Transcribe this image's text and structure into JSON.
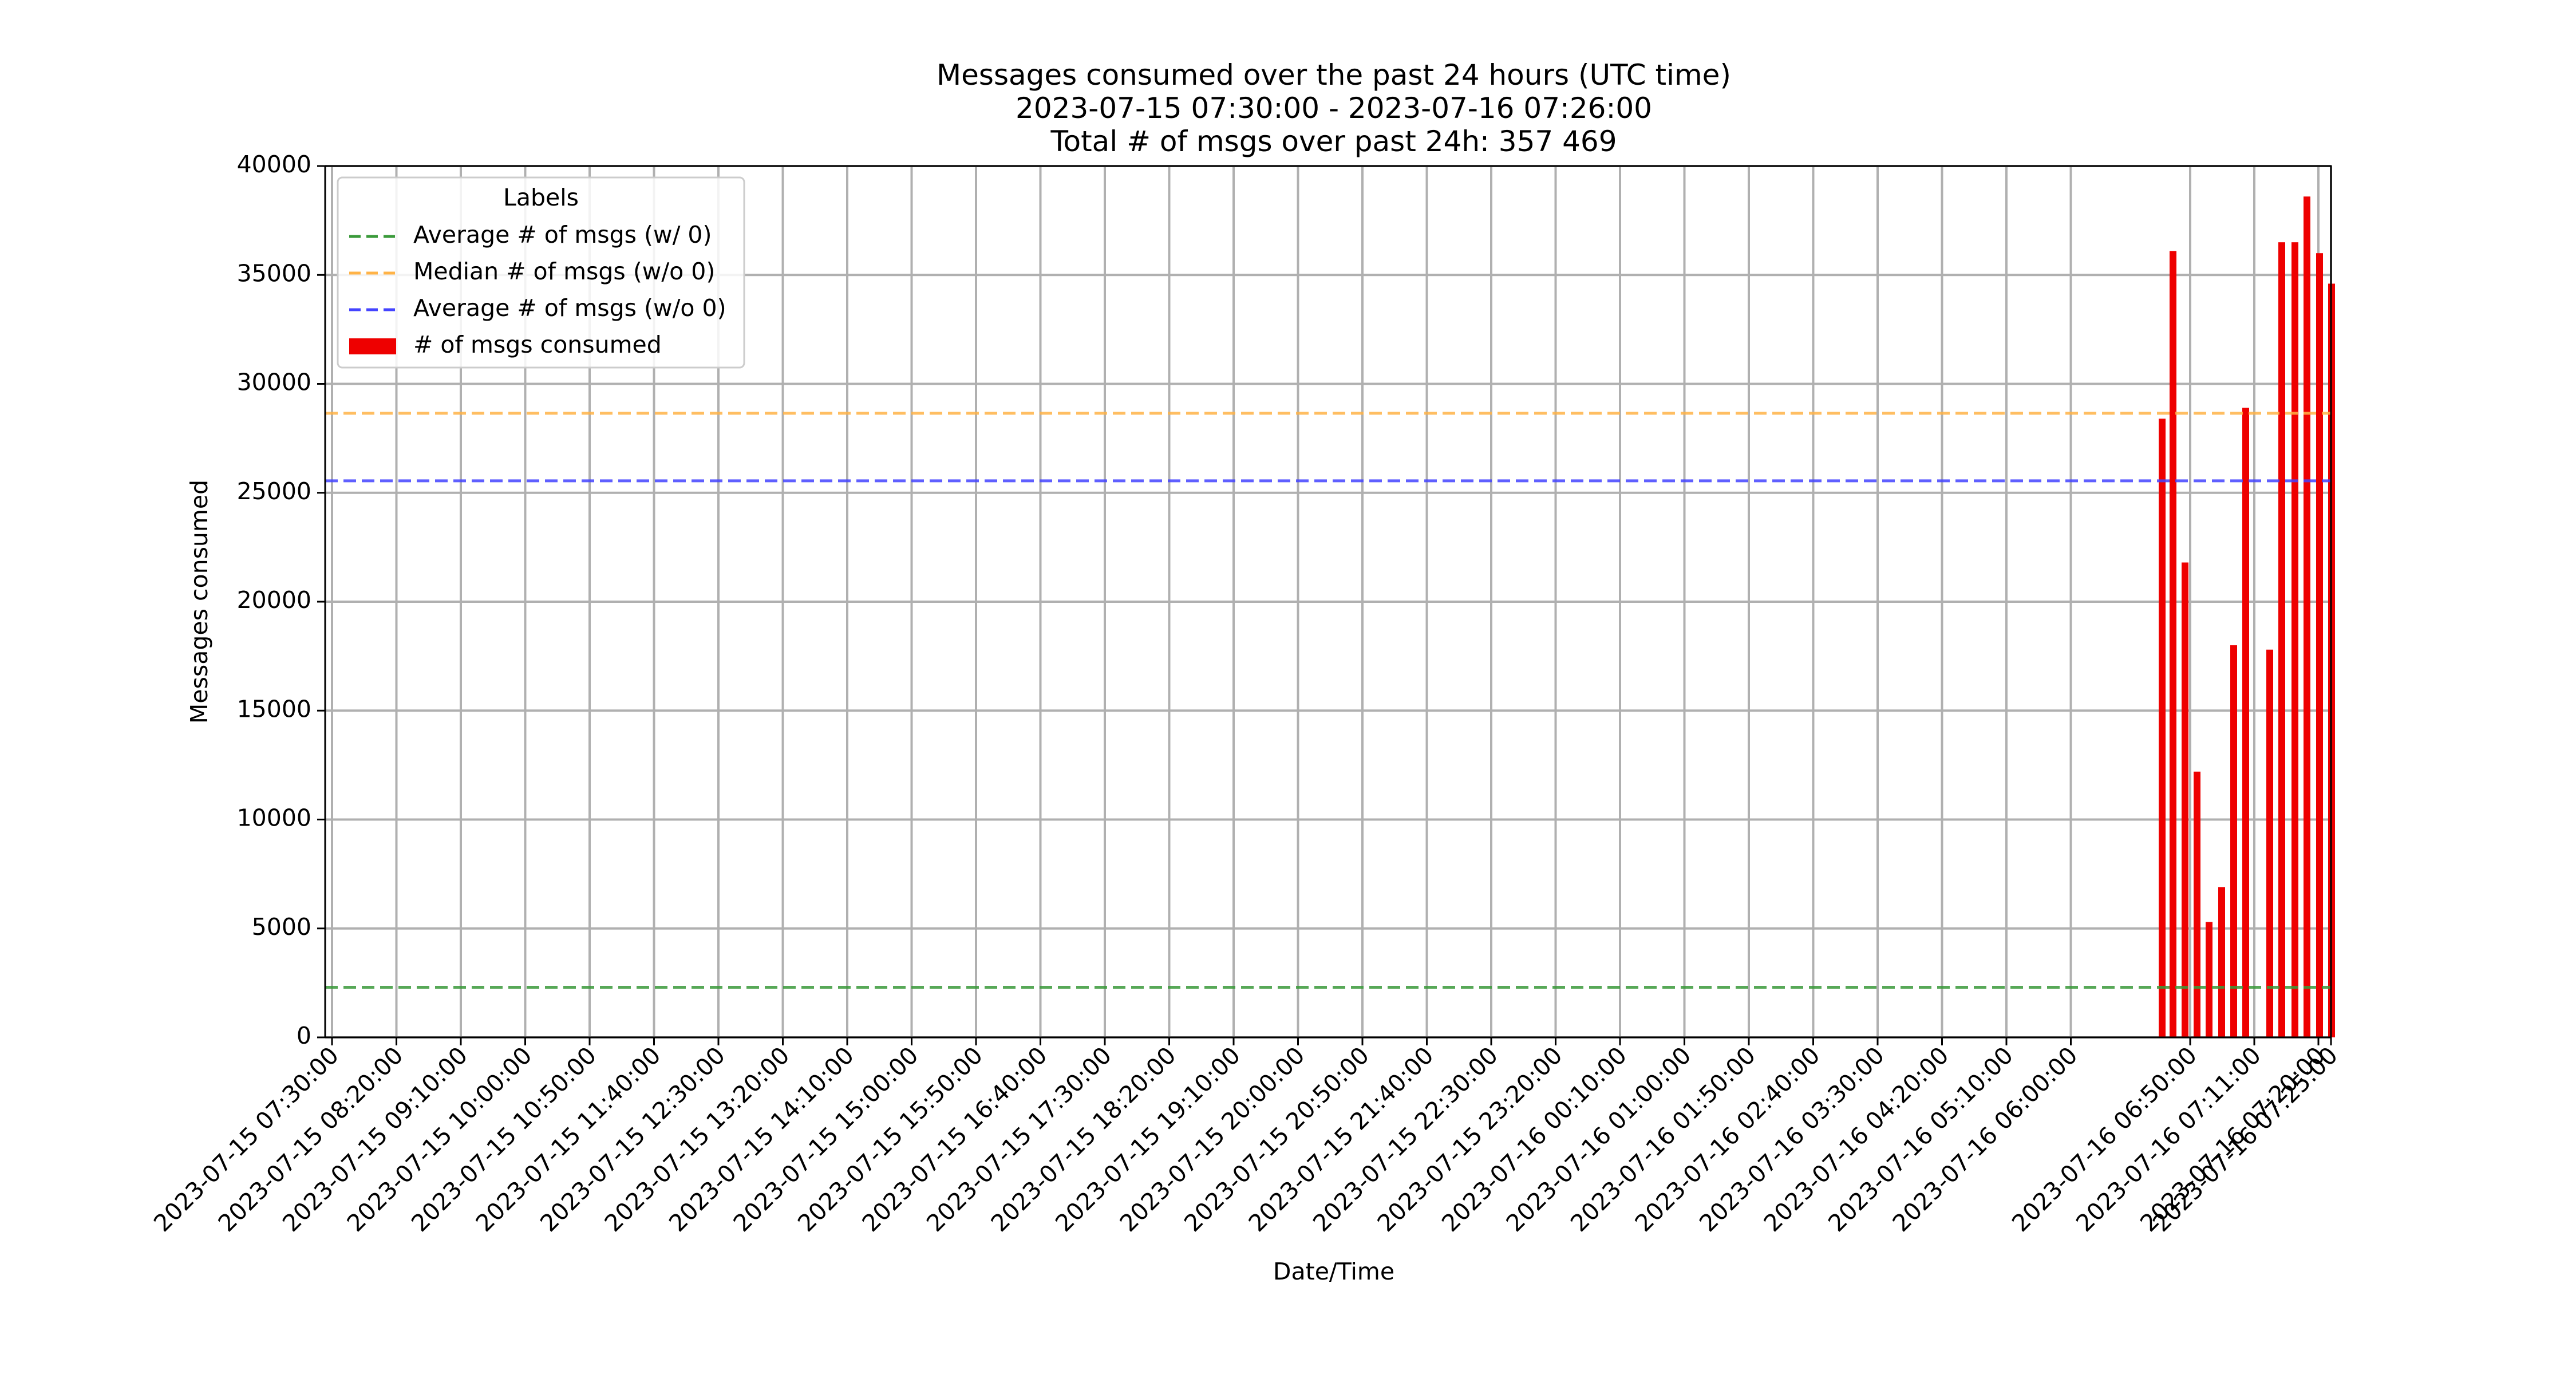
{
  "chart_data": {
    "type": "bar",
    "title_lines": [
      "Messages consumed over the past 24 hours (UTC time)",
      "2023-07-15 07:30:00 - 2023-07-16 07:26:00",
      "Total # of msgs over past 24h: 357 469"
    ],
    "xlabel": "Date/Time",
    "ylabel": "Messages consumed",
    "ylim": [
      0,
      40000
    ],
    "xlim": [
      "2023-07-15 07:30:00",
      "2023-07-16 07:26:00"
    ],
    "yticks": [
      0,
      5000,
      10000,
      15000,
      20000,
      25000,
      30000,
      35000,
      40000
    ],
    "xticks": [
      "2023-07-15 07:30:00",
      "2023-07-15 08:20:00",
      "2023-07-15 09:10:00",
      "2023-07-15 10:00:00",
      "2023-07-15 10:50:00",
      "2023-07-15 11:40:00",
      "2023-07-15 12:30:00",
      "2023-07-15 13:20:00",
      "2023-07-15 14:10:00",
      "2023-07-15 15:00:00",
      "2023-07-15 15:50:00",
      "2023-07-15 16:40:00",
      "2023-07-15 17:30:00",
      "2023-07-15 18:20:00",
      "2023-07-15 19:10:00",
      "2023-07-15 20:00:00",
      "2023-07-15 20:50:00",
      "2023-07-15 21:40:00",
      "2023-07-15 22:30:00",
      "2023-07-15 23:20:00",
      "2023-07-16 00:10:00",
      "2023-07-16 01:00:00",
      "2023-07-16 01:50:00",
      "2023-07-16 02:40:00",
      "2023-07-16 03:30:00",
      "2023-07-16 04:20:00",
      "2023-07-16 05:10:00",
      "2023-07-16 06:00:00",
      "2023-07-16 06:50:00",
      "2023-07-16 07:11:00",
      "2023-07-16 07:20:00",
      "2023-07-16 07:25:00"
    ],
    "grid": true,
    "legend": {
      "title": "Labels",
      "placement": "top-left",
      "entries": [
        {
          "label": "Average # of msgs (w/ 0)",
          "kind": "dashed-line",
          "color": "#3a9a3a"
        },
        {
          "label": "Median # of msgs (w/o 0)",
          "kind": "dashed-line",
          "color": "#ffb347"
        },
        {
          "label": "Average # of msgs (w/o 0)",
          "kind": "dashed-line",
          "color": "#4444ff"
        },
        {
          "label": "# of msgs consumed",
          "kind": "bar",
          "color": "#ee0000"
        }
      ]
    },
    "reference_lines": [
      {
        "name": "Average # of msgs (w/ 0)",
        "value": 2300,
        "color": "#3a9a3a"
      },
      {
        "name": "Median # of msgs (w/o 0)",
        "value": 28650,
        "color": "#ffb347"
      },
      {
        "name": "Average # of msgs (w/o 0)",
        "value": 25550,
        "color": "#4444ff"
      }
    ],
    "series": [
      {
        "name": "# of msgs consumed",
        "color": "#ee0000",
        "points": [
          {
            "x": "2023-07-16 06:33:00",
            "y": 28400
          },
          {
            "x": "2023-07-16 06:37:00",
            "y": 36100
          },
          {
            "x": "2023-07-16 06:41:00",
            "y": 21800
          },
          {
            "x": "2023-07-16 06:45:00",
            "y": 12200
          },
          {
            "x": "2023-07-16 06:49:00",
            "y": 5300
          },
          {
            "x": "2023-07-16 06:53:00",
            "y": 6900
          },
          {
            "x": "2023-07-16 06:57:00",
            "y": 18000
          },
          {
            "x": "2023-07-16 07:00:00",
            "y": 28900
          },
          {
            "x": "2023-07-16 07:08:00",
            "y": 17800
          },
          {
            "x": "2023-07-16 07:12:00",
            "y": 36500
          },
          {
            "x": "2023-07-16 07:16:00",
            "y": 36500
          },
          {
            "x": "2023-07-16 07:20:00",
            "y": 38600
          },
          {
            "x": "2023-07-16 07:23:00",
            "y": 36000
          },
          {
            "x": "2023-07-16 07:26:00",
            "y": 34600
          }
        ]
      }
    ]
  }
}
